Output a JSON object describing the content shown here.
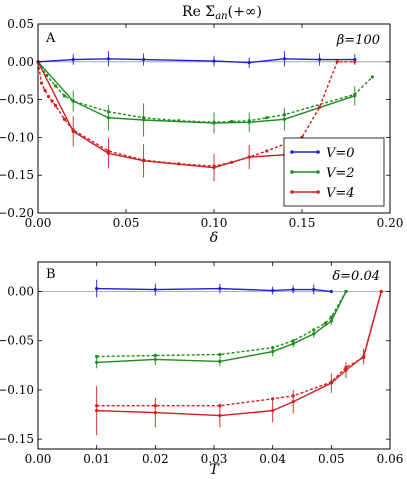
{
  "figure_title": "Re Σ",
  "figure_title_sub": "an",
  "figure_title_tail": "(+∞)",
  "chart_data": [
    {
      "type": "line",
      "panel_label": "A",
      "param_label": "β=100",
      "xlabel": "δ",
      "ylabel": "",
      "xlim": [
        0.0,
        0.2
      ],
      "ylim": [
        -0.2,
        0.05
      ],
      "xticks": [
        "0.00",
        "0.05",
        "0.10",
        "0.15",
        "0.20"
      ],
      "yticks": [
        "0.05",
        "0.00",
        "−0.05",
        "−0.10",
        "−0.15",
        "−0.20"
      ],
      "xtick_values": [
        0.0,
        0.05,
        0.1,
        0.15,
        0.2
      ],
      "ytick_values": [
        0.05,
        0.0,
        -0.05,
        -0.1,
        -0.15,
        -0.2
      ],
      "legend": {
        "placement": "lower-right",
        "entries": [
          "V=0",
          "V=2",
          "V=4"
        ]
      },
      "series": [
        {
          "name": "V=0",
          "color": "#1f1fd4",
          "style": "solid",
          "x": [
            0.0,
            0.02,
            0.04,
            0.06,
            0.1,
            0.12,
            0.14,
            0.16,
            0.18
          ],
          "y": [
            0.0,
            0.003,
            0.004,
            0.003,
            0.001,
            -0.001,
            0.004,
            0.003,
            0.003
          ],
          "err": [
            0.0,
            0.007,
            0.01,
            0.008,
            0.007,
            0.007,
            0.01,
            0.008,
            0.007
          ]
        },
        {
          "name": "V=2",
          "color": "#1e8c1e",
          "style": "solid",
          "x": [
            0.0,
            0.02,
            0.04,
            0.06,
            0.1,
            0.12,
            0.14,
            0.18
          ],
          "y": [
            0.0,
            -0.052,
            -0.074,
            -0.077,
            -0.081,
            -0.08,
            -0.076,
            -0.045
          ],
          "err": [
            0.0,
            0.014,
            0.017,
            0.022,
            0.014,
            0.013,
            0.015,
            0.013
          ]
        },
        {
          "name": "V=2 (dashed)",
          "color": "#1e8c1e",
          "style": "dashed",
          "x": [
            0.0,
            0.005,
            0.01,
            0.015,
            0.02,
            0.04,
            0.06,
            0.08,
            0.1,
            0.11,
            0.12,
            0.13,
            0.14,
            0.18,
            0.19
          ],
          "y": [
            0.0,
            -0.018,
            -0.032,
            -0.045,
            -0.052,
            -0.066,
            -0.074,
            -0.078,
            -0.08,
            -0.079,
            -0.078,
            -0.074,
            -0.07,
            -0.043,
            -0.02
          ],
          "err": [
            0.0,
            0.0,
            0.0,
            0.0,
            0.0,
            0.0,
            0.0,
            0.0,
            0.0,
            0.0,
            0.0,
            0.0,
            0.0,
            0.0,
            0.0
          ]
        },
        {
          "name": "V=4",
          "color": "#d41f1f",
          "style": "solid",
          "x": [
            0.0,
            0.02,
            0.04,
            0.06,
            0.1,
            0.12,
            0.14
          ],
          "y": [
            0.0,
            -0.092,
            -0.121,
            -0.131,
            -0.14,
            -0.126,
            -0.123
          ],
          "err": [
            0.0,
            0.02,
            0.02,
            0.022,
            0.018,
            0.016,
            0.01
          ]
        },
        {
          "name": "V=4 (dashed)",
          "color": "#d41f1f",
          "style": "dashed",
          "x": [
            0.0,
            0.002,
            0.004,
            0.006,
            0.008,
            0.01,
            0.015,
            0.02,
            0.04,
            0.06,
            0.08,
            0.1,
            0.11,
            0.12,
            0.13,
            0.15,
            0.16,
            0.17,
            0.18
          ],
          "y": [
            0.0,
            -0.028,
            -0.038,
            -0.046,
            -0.052,
            -0.058,
            -0.076,
            -0.09,
            -0.118,
            -0.13,
            -0.135,
            -0.138,
            -0.133,
            -0.126,
            -0.118,
            -0.1,
            -0.06,
            0.0,
            0.0
          ],
          "err": [
            0.0,
            0.0,
            0.0,
            0.0,
            0.0,
            0.0,
            0.0,
            0.0,
            0.0,
            0.0,
            0.0,
            0.0,
            0.0,
            0.0,
            0.0,
            0.0,
            0.0,
            0.0,
            0.0
          ]
        }
      ]
    },
    {
      "type": "line",
      "panel_label": "B",
      "param_label": "δ=0.04",
      "xlabel": "T",
      "ylabel": "",
      "xlim": [
        0.0,
        0.06
      ],
      "ylim": [
        -0.16,
        0.03
      ],
      "xticks": [
        "0.00",
        "0.01",
        "0.02",
        "0.03",
        "0.04",
        "0.05",
        "0.06"
      ],
      "yticks": [
        "0.00",
        "−0.05",
        "−0.10",
        "−0.15"
      ],
      "xtick_values": [
        0.0,
        0.01,
        0.02,
        0.03,
        0.04,
        0.05,
        0.06
      ],
      "ytick_values": [
        0.0,
        -0.05,
        -0.1,
        -0.15
      ],
      "series": [
        {
          "name": "V=0",
          "color": "#1f1fd4",
          "style": "solid",
          "x": [
            0.01,
            0.02,
            0.031,
            0.04,
            0.0435,
            0.047,
            0.05
          ],
          "y": [
            0.003,
            0.002,
            0.003,
            0.001,
            0.002,
            0.002,
            0.0
          ],
          "err": [
            0.009,
            0.006,
            0.005,
            0.004,
            0.004,
            0.005,
            0.0
          ]
        },
        {
          "name": "V=2",
          "color": "#1e8c1e",
          "style": "solid",
          "x": [
            0.01,
            0.02,
            0.031,
            0.04,
            0.0435,
            0.047,
            0.05,
            0.0525
          ],
          "y": [
            -0.072,
            -0.069,
            -0.071,
            -0.061,
            -0.053,
            -0.043,
            -0.03,
            0.0
          ],
          "err": [
            0.006,
            0.006,
            0.005,
            0.005,
            0.004,
            0.004,
            0.004,
            0.0
          ]
        },
        {
          "name": "V=2 (dashed)",
          "color": "#1e8c1e",
          "style": "dashed",
          "x": [
            0.01,
            0.02,
            0.031,
            0.04,
            0.0435,
            0.047,
            0.049,
            0.05,
            0.0525
          ],
          "y": [
            -0.066,
            -0.065,
            -0.064,
            -0.057,
            -0.05,
            -0.039,
            -0.032,
            -0.026,
            0.0
          ],
          "err": [
            0.0,
            0.0,
            0.0,
            0.0,
            0.0,
            0.0,
            0.0,
            0.0,
            0.0
          ]
        },
        {
          "name": "V=4",
          "color": "#d41f1f",
          "style": "solid",
          "x": [
            0.01,
            0.02,
            0.031,
            0.04,
            0.0435,
            0.05,
            0.0525,
            0.0555,
            0.0585
          ],
          "y": [
            -0.121,
            -0.123,
            -0.126,
            -0.121,
            -0.112,
            -0.093,
            -0.08,
            -0.066,
            0.0
          ],
          "err": [
            0.025,
            0.015,
            0.012,
            0.012,
            0.012,
            0.01,
            0.008,
            0.008,
            0.0
          ]
        },
        {
          "name": "V=4 (dashed)",
          "color": "#d41f1f",
          "style": "dashed",
          "x": [
            0.01,
            0.02,
            0.031,
            0.04,
            0.0435,
            0.05,
            0.0525,
            0.0555,
            0.0585
          ],
          "y": [
            -0.116,
            -0.116,
            -0.116,
            -0.109,
            -0.106,
            -0.092,
            -0.077,
            -0.067,
            0.0
          ],
          "err": [
            0.0,
            0.0,
            0.0,
            0.0,
            0.0,
            0.0,
            0.0,
            0.0,
            0.0
          ]
        }
      ]
    }
  ]
}
